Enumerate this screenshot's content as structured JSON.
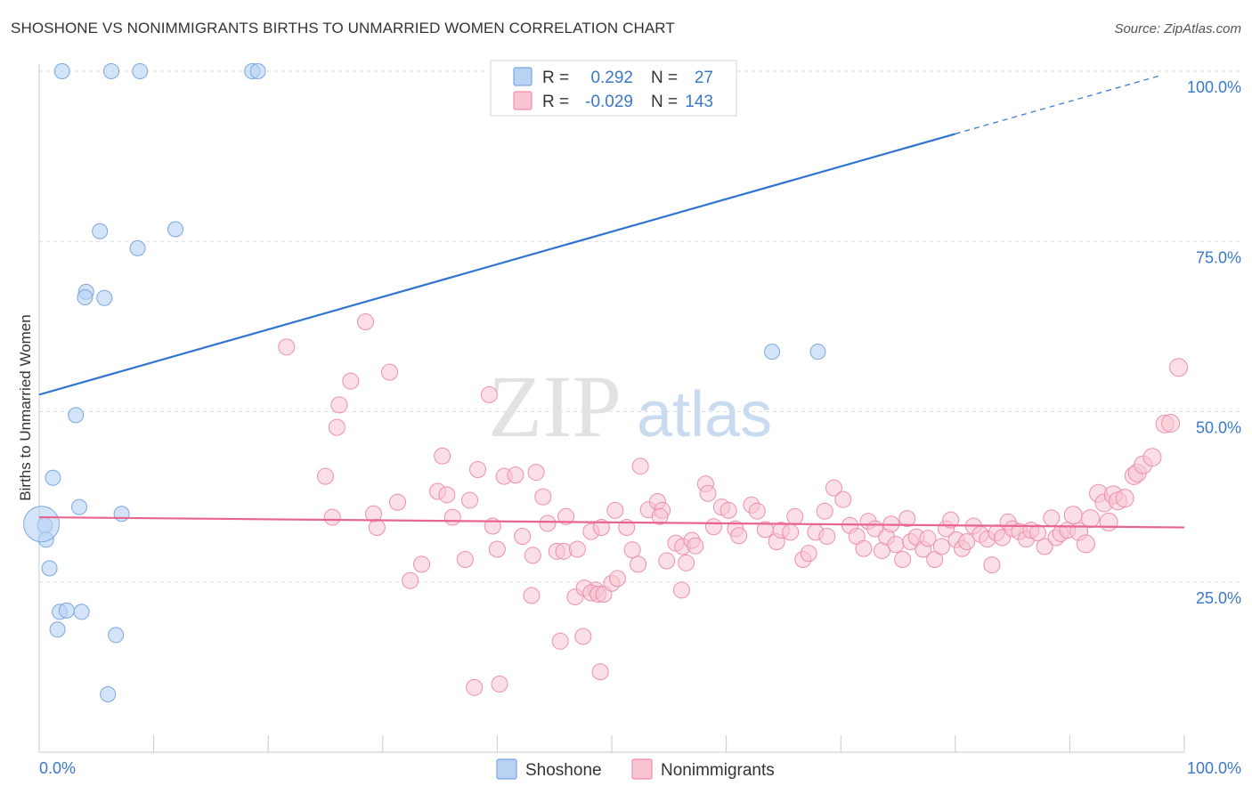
{
  "title": "SHOSHONE VS NONIMMIGRANTS BIRTHS TO UNMARRIED WOMEN CORRELATION CHART",
  "source": "Source: ZipAtlas.com",
  "watermark": {
    "zip": "ZIP",
    "atlas": "atlas"
  },
  "legend_box": {
    "rows": [
      {
        "r_label": "R =",
        "r_value": "0.292",
        "n_label": "N =",
        "n_value": "27"
      },
      {
        "r_label": "R =",
        "r_value": "-0.029",
        "n_label": "N =",
        "n_value": "143"
      }
    ]
  },
  "bottom_legend": [
    "Shoshone",
    "Nonimmigrants"
  ],
  "chart_data": {
    "type": "scatter",
    "title": "SHOSHONE VS NONIMMIGRANTS BIRTHS TO UNMARRIED WOMEN CORRELATION CHART",
    "xlabel": "",
    "ylabel": "Births to Unmarried Women",
    "xlim": [
      0,
      100
    ],
    "ylim": [
      0,
      100
    ],
    "x_tick_labels": [
      "0.0%",
      "100.0%"
    ],
    "y_tick_labels": [
      "25.0%",
      "50.0%",
      "75.0%",
      "100.0%"
    ],
    "y_ticks": [
      25,
      50,
      75,
      100
    ],
    "grid": true,
    "legend_position": "top-center",
    "colors": {
      "shoshone_fill": "#b8d2f4",
      "shoshone_stroke": "#7aa7e0",
      "shoshone_line": "#2f74d0",
      "nonimm_fill": "#f8c4d2",
      "nonimm_stroke": "#ee8fab",
      "nonimm_line": "#e8658f",
      "tick": "#3a78c9"
    },
    "series": [
      {
        "name": "Shoshone",
        "trend": {
          "x0": 0,
          "y0": 52.5,
          "x1": 80,
          "y1": 90.8,
          "x_dash_end": 98,
          "y_dash_end": 99.4
        },
        "points": [
          [
            2.0,
            100
          ],
          [
            6.3,
            100
          ],
          [
            8.8,
            100
          ],
          [
            18.6,
            100
          ],
          [
            19.1,
            100
          ],
          [
            5.3,
            76.5
          ],
          [
            8.6,
            74
          ],
          [
            11.9,
            76.8
          ],
          [
            4.1,
            67.6
          ],
          [
            4.0,
            66.8
          ],
          [
            5.7,
            66.7
          ],
          [
            3.2,
            49.5
          ],
          [
            1.2,
            40.3
          ],
          [
            3.5,
            36
          ],
          [
            7.2,
            35
          ],
          [
            0.5,
            33.3
          ],
          [
            0.6,
            31.2
          ],
          [
            0.9,
            27
          ],
          [
            1.8,
            20.6
          ],
          [
            2.4,
            20.8
          ],
          [
            3.7,
            20.6
          ],
          [
            1.6,
            18
          ],
          [
            6.7,
            17.2
          ],
          [
            6.0,
            8.5
          ],
          [
            64.0,
            58.8
          ],
          [
            68.0,
            58.8
          ],
          [
            0.2,
            33.5
          ]
        ]
      },
      {
        "name": "Nonimmigrants",
        "trend": {
          "x0": 0,
          "y0": 34.5,
          "x1": 100,
          "y1": 33.0
        },
        "points": [
          [
            28.5,
            63.2
          ],
          [
            21.6,
            59.5
          ],
          [
            30.6,
            55.8
          ],
          [
            27.2,
            54.5
          ],
          [
            26.2,
            51
          ],
          [
            26.0,
            47.7
          ],
          [
            39.3,
            52.5
          ],
          [
            35.2,
            43.5
          ],
          [
            38.3,
            41.5
          ],
          [
            25.0,
            40.5
          ],
          [
            25.6,
            34.5
          ],
          [
            29.2,
            35
          ],
          [
            29.5,
            33
          ],
          [
            31.3,
            36.7
          ],
          [
            34.8,
            38.3
          ],
          [
            35.6,
            37.8
          ],
          [
            36.1,
            34.5
          ],
          [
            37.6,
            37
          ],
          [
            39.6,
            33.2
          ],
          [
            40.6,
            40.5
          ],
          [
            41.6,
            40.7
          ],
          [
            42.2,
            31.7
          ],
          [
            43.4,
            41.1
          ],
          [
            44.0,
            37.5
          ],
          [
            44.4,
            33.6
          ],
          [
            45.2,
            29.5
          ],
          [
            33.4,
            27.6
          ],
          [
            32.4,
            25.2
          ],
          [
            37.2,
            28.3
          ],
          [
            40.0,
            29.8
          ],
          [
            43.1,
            28.9
          ],
          [
            45.8,
            29.5
          ],
          [
            47.0,
            29.8
          ],
          [
            48.2,
            32.4
          ],
          [
            49.1,
            33.0
          ],
          [
            50.3,
            35.5
          ],
          [
            51.3,
            33.0
          ],
          [
            51.8,
            29.7
          ],
          [
            52.3,
            27.6
          ],
          [
            53.2,
            35.6
          ],
          [
            54.0,
            36.8
          ],
          [
            54.4,
            35.5
          ],
          [
            54.2,
            34.6
          ],
          [
            54.8,
            28.1
          ],
          [
            55.6,
            30.7
          ],
          [
            56.2,
            30.2
          ],
          [
            56.5,
            27.8
          ],
          [
            57.0,
            31.1
          ],
          [
            57.3,
            30.3
          ],
          [
            58.2,
            39.4
          ],
          [
            58.4,
            38.0
          ],
          [
            58.9,
            33.1
          ],
          [
            59.6,
            36
          ],
          [
            60.2,
            35.5
          ],
          [
            60.8,
            32.8
          ],
          [
            61.1,
            31.8
          ],
          [
            62.2,
            36.3
          ],
          [
            62.7,
            35.4
          ],
          [
            63.4,
            32.7
          ],
          [
            64.4,
            30.9
          ],
          [
            64.8,
            32.6
          ],
          [
            65.6,
            32.3
          ],
          [
            66.0,
            34.6
          ],
          [
            66.7,
            28.3
          ],
          [
            67.2,
            29.2
          ],
          [
            67.8,
            32.3
          ],
          [
            68.6,
            35.4
          ],
          [
            68.8,
            31.7
          ],
          [
            69.4,
            38.8
          ],
          [
            70.2,
            37.1
          ],
          [
            70.8,
            33.3
          ],
          [
            71.4,
            31.7
          ],
          [
            72.0,
            29.9
          ],
          [
            72.4,
            33.9
          ],
          [
            73.0,
            32.8
          ],
          [
            73.6,
            29.6
          ],
          [
            74.0,
            31.6
          ],
          [
            74.4,
            33.5
          ],
          [
            74.8,
            30.5
          ],
          [
            75.4,
            28.3
          ],
          [
            75.8,
            34.3
          ],
          [
            76.1,
            30.9
          ],
          [
            76.6,
            31.6
          ],
          [
            77.2,
            29.8
          ],
          [
            77.6,
            31.4
          ],
          [
            78.2,
            28.3
          ],
          [
            78.8,
            30.2
          ],
          [
            79.2,
            32.8
          ],
          [
            79.6,
            34.1
          ],
          [
            80.1,
            31.2
          ],
          [
            80.6,
            29.9
          ],
          [
            81.0,
            30.9
          ],
          [
            81.6,
            33.2
          ],
          [
            82.2,
            32.0
          ],
          [
            82.8,
            31.3
          ],
          [
            83.2,
            27.5
          ],
          [
            83.6,
            32.2
          ],
          [
            84.1,
            31.5
          ],
          [
            84.6,
            33.8
          ],
          [
            85.0,
            32.8
          ],
          [
            85.6,
            32.4
          ],
          [
            86.2,
            31.3
          ],
          [
            86.6,
            32.6
          ],
          [
            87.2,
            32.2
          ],
          [
            87.8,
            30.2
          ],
          [
            88.4,
            34.4
          ],
          [
            88.8,
            31.5
          ],
          [
            89.2,
            32.1
          ],
          [
            89.8,
            32.6
          ],
          [
            90.3,
            34.8
          ],
          [
            90.8,
            32.4
          ],
          [
            91.4,
            30.6
          ],
          [
            91.8,
            34.3
          ],
          [
            92.5,
            38.0
          ],
          [
            93.0,
            36.6
          ],
          [
            93.4,
            33.8
          ],
          [
            93.8,
            37.8
          ],
          [
            94.2,
            36.9
          ],
          [
            94.8,
            37.3
          ],
          [
            95.6,
            40.6
          ],
          [
            95.9,
            41.0
          ],
          [
            96.4,
            42.2
          ],
          [
            97.2,
            43.3
          ],
          [
            98.3,
            48.2
          ],
          [
            98.8,
            48.3
          ],
          [
            99.5,
            56.5
          ],
          [
            46.0,
            34.6
          ],
          [
            48.6,
            23.8
          ],
          [
            43.0,
            23.0
          ],
          [
            45.5,
            16.3
          ],
          [
            46.8,
            22.8
          ],
          [
            47.6,
            24.1
          ],
          [
            48.2,
            23.4
          ],
          [
            48.8,
            23.2
          ],
          [
            49.3,
            23.2
          ],
          [
            47.5,
            17.0
          ],
          [
            49.0,
            11.8
          ],
          [
            50.0,
            24.8
          ],
          [
            50.5,
            25.5
          ],
          [
            52.5,
            42.0
          ],
          [
            38.0,
            9.5
          ],
          [
            40.2,
            10.0
          ],
          [
            56.1,
            23.8
          ]
        ]
      }
    ]
  }
}
